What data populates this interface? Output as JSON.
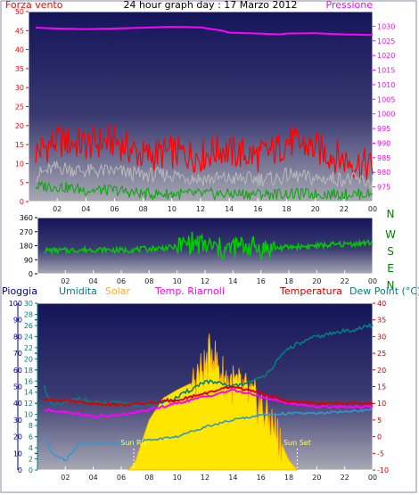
{
  "page": {
    "title": "24 hour graph day : 17 Marzo 2012",
    "background": "#ffffff",
    "border_color": "#8a8aa8"
  },
  "chart_data": [
    {
      "type": "line",
      "panel": "wind-pressure",
      "title": "24 hour graph day : 17 Marzo 2012",
      "x_ticks": [
        "02",
        "04",
        "06",
        "08",
        "10",
        "12",
        "14",
        "16",
        "18",
        "20",
        "22",
        "00"
      ],
      "left_axis": {
        "label": "Forza vento",
        "ylim": [
          0,
          50
        ],
        "ticks": [
          0,
          5,
          10,
          15,
          20,
          25,
          30,
          35,
          40,
          45,
          50
        ],
        "color": "#ff0000"
      },
      "right_axis": {
        "label": "Pressione",
        "ylim": [
          970,
          1035
        ],
        "ticks": [
          975,
          980,
          985,
          990,
          995,
          1000,
          1005,
          1010,
          1015,
          1020,
          1025,
          1030
        ],
        "color": "#ff00ff"
      },
      "x": [
        0.5,
        2,
        4,
        6,
        8,
        10,
        12,
        13.5,
        14,
        16,
        17.5,
        18,
        20,
        22,
        24
      ],
      "series": [
        {
          "name": "Gust",
          "axis": "left",
          "color": "#ff0000",
          "values": [
            13,
            16,
            15,
            16,
            12,
            13,
            12,
            14,
            13,
            12,
            14,
            16,
            14,
            11,
            9
          ]
        },
        {
          "name": "Average",
          "axis": "left",
          "color": "#bbbbbb",
          "values": [
            7,
            9,
            8,
            8,
            7,
            7,
            6,
            6,
            6,
            6,
            6,
            7,
            6,
            6,
            5
          ]
        },
        {
          "name": "Wind",
          "axis": "left",
          "color": "#00aa00",
          "values": [
            4,
            4,
            3,
            3,
            2,
            2,
            2,
            2,
            2,
            2,
            2,
            2,
            2,
            2,
            2
          ]
        },
        {
          "name": "Pressione",
          "axis": "right",
          "color": "#ff00ff",
          "values": [
            1029.5,
            1029.2,
            1029,
            1029.2,
            1029.5,
            1029.8,
            1029.6,
            1028.5,
            1027.8,
            1027.5,
            1027.2,
            1027.5,
            1027.6,
            1027.2,
            1027
          ]
        }
      ]
    },
    {
      "type": "scatter",
      "panel": "wind-direction",
      "x_ticks": [
        "02",
        "04",
        "06",
        "08",
        "10",
        "12",
        "14",
        "16",
        "18",
        "20",
        "22",
        "00"
      ],
      "y_ticks": [
        0,
        90,
        180,
        270,
        360
      ],
      "ylim": [
        0,
        360
      ],
      "compass": [
        "N",
        "W",
        "S",
        "E",
        "N"
      ],
      "series": [
        {
          "name": "Direzione",
          "color": "#00cc00",
          "x": [
            0.5,
            2,
            4,
            6,
            8,
            10,
            11,
            12,
            13,
            13.5,
            14,
            15,
            16,
            18,
            20,
            22,
            24
          ],
          "values": [
            150,
            150,
            155,
            150,
            160,
            170,
            200,
            180,
            160,
            150,
            170,
            180,
            160,
            170,
            180,
            190,
            200
          ]
        }
      ]
    },
    {
      "type": "line",
      "panel": "temperature-humidity-solar",
      "x_ticks": [
        "02",
        "04",
        "06",
        "08",
        "10",
        "12",
        "14",
        "16",
        "18",
        "20",
        "22",
        "00"
      ],
      "labels": {
        "rain": "Pioggia",
        "humidity": "Umidita",
        "solar": "Solar",
        "temp_riarnoli": "Temp. Riarnoli",
        "temperature": "Temperatura",
        "dew_point": "Dew Point (°C)"
      },
      "annotations": [
        {
          "text": "Sun Ris",
          "x": 6.9
        },
        {
          "text": "Sun Set",
          "x": 18.6
        }
      ],
      "axes": [
        {
          "name": "Pioggia",
          "ylim": [
            0,
            100
          ],
          "ticks": [
            0,
            10,
            20,
            30,
            40,
            50,
            60,
            70,
            80,
            90,
            100
          ],
          "color": "#000088"
        },
        {
          "name": "Umidita",
          "ylim": [
            0,
            30
          ],
          "ticks": [
            0,
            2,
            4,
            6,
            8,
            10,
            12,
            14,
            16,
            18,
            20,
            22,
            24,
            26,
            28,
            30
          ],
          "color": "#008080"
        },
        {
          "name": "Temperatura",
          "ylim": [
            -10,
            40
          ],
          "ticks": [
            -10,
            -5,
            0,
            5,
            10,
            15,
            20,
            25,
            30,
            35,
            40
          ],
          "color": "#cc0000"
        }
      ],
      "series": [
        {
          "name": "Solar",
          "axis": "Pioggia",
          "color": "#ffdd00",
          "x": [
            6.5,
            7,
            8,
            9,
            10,
            11,
            12,
            12.5,
            13,
            13.5,
            14,
            15,
            16,
            17,
            18,
            18.6
          ],
          "values": [
            0,
            5,
            30,
            43,
            48,
            52,
            62,
            73,
            60,
            55,
            52,
            46,
            38,
            25,
            6,
            0
          ]
        },
        {
          "name": "Umidita",
          "axis": "Umidita",
          "color": "#008080",
          "x": [
            0.5,
            1,
            2,
            3,
            4,
            6,
            8,
            10,
            12,
            14,
            16,
            17,
            18,
            20,
            22,
            24
          ],
          "values": [
            15,
            11.5,
            12,
            13,
            12,
            12,
            11.5,
            13,
            16,
            15,
            16.5,
            19,
            22,
            24,
            25,
            26
          ]
        },
        {
          "name": "Temp. Riarnoli",
          "axis": "Temperatura",
          "color": "#ff00ff",
          "x": [
            0.5,
            2,
            4,
            6,
            8,
            10,
            12,
            14,
            16,
            18,
            20,
            22,
            24
          ],
          "values": [
            8,
            7.5,
            6,
            6.5,
            8,
            10,
            12,
            14,
            12,
            10,
            9,
            9,
            9
          ]
        },
        {
          "name": "Temperatura",
          "axis": "Temperatura",
          "color": "#dd0000",
          "x": [
            0.5,
            2,
            4,
            6,
            8,
            10,
            12,
            14,
            16,
            18,
            20,
            22,
            24
          ],
          "values": [
            11,
            11,
            10,
            9.5,
            10,
            11,
            13,
            15,
            13,
            10.5,
            10,
            10,
            10
          ]
        },
        {
          "name": "Dew Point",
          "axis": "Temperatura",
          "color": "#3399cc",
          "x": [
            0.5,
            1,
            2,
            3,
            4,
            6,
            8,
            10,
            12,
            14,
            16,
            18,
            20,
            22,
            24
          ],
          "values": [
            0,
            -5,
            -7,
            -2,
            -2,
            -2,
            -1,
            0,
            3,
            5,
            6.5,
            7,
            7,
            7.5,
            8
          ]
        }
      ]
    }
  ]
}
